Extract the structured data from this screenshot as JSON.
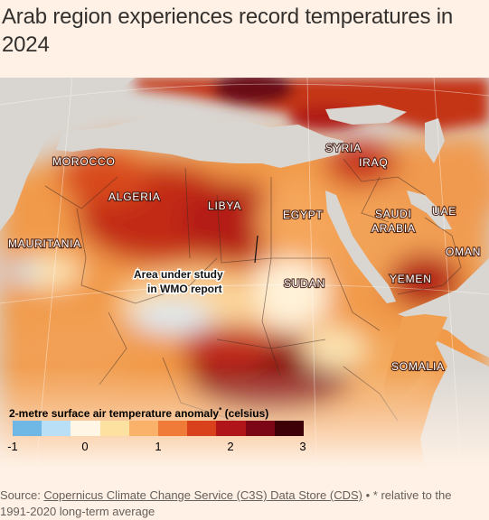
{
  "title": "Arab region experiences record temperatures in 2024",
  "map": {
    "countries": [
      "MOROCCO",
      "ALGERIA",
      "LIBYA",
      "EGYPT",
      "SYRIA",
      "IRAQ",
      "SAUDI",
      "ARABIA",
      "UAE",
      "OMAN",
      "MAURITANIA",
      "SUDAN",
      "YEMEN",
      "SOMALIA"
    ],
    "study_area_label": [
      "Area under study",
      "in WMO report"
    ]
  },
  "legend": {
    "title": "2-metre surface air temperature anomaly",
    "title_mark": "*",
    "title_unit": "(celsius)",
    "ticks": [
      "-1",
      "0",
      "1",
      "2",
      "3"
    ],
    "colors": [
      "#6fb8e6",
      "#b8dff5",
      "#fff6e6",
      "#fde1a0",
      "#fab16a",
      "#f07b38",
      "#d8411c",
      "#b0151a",
      "#7c0516",
      "#3d0007"
    ]
  },
  "source": {
    "prefix": "Source: ",
    "link": "Copernicus Climate Change Service (C3S) Data Store (CDS)",
    "suffix": " • * relative to the 1991-2020 long-term average"
  }
}
